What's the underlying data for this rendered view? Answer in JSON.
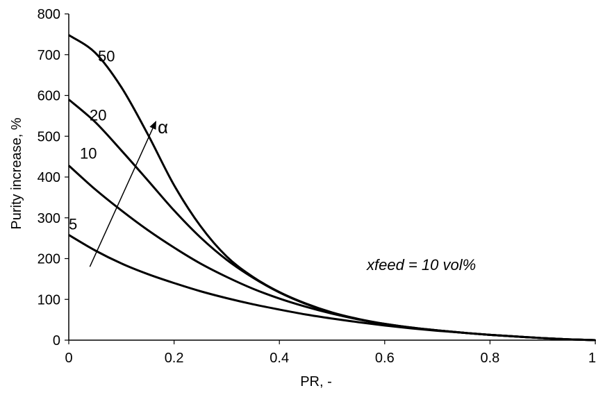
{
  "chart_data": {
    "type": "line",
    "title": "",
    "xlabel": "PR, -",
    "ylabel": "Purity increase, %",
    "xlim": [
      0,
      1
    ],
    "ylim": [
      0,
      800
    ],
    "x_ticks": [
      0,
      0.2,
      0.4,
      0.6,
      0.8,
      1
    ],
    "x_tick_labels": [
      "0",
      "0.2",
      "0.4",
      "0.6",
      "0.8",
      "1"
    ],
    "y_ticks": [
      0,
      100,
      200,
      300,
      400,
      500,
      600,
      700,
      800
    ],
    "y_tick_labels": [
      "0",
      "100",
      "200",
      "300",
      "400",
      "500",
      "600",
      "700",
      "800"
    ],
    "grid": false,
    "legend": "none",
    "line_color": "#000000",
    "x": [
      0,
      0.05,
      0.1,
      0.15,
      0.2,
      0.25,
      0.3,
      0.35,
      0.4,
      0.45,
      0.5,
      0.55,
      0.6,
      0.65,
      0.7,
      0.75,
      0.8,
      0.85,
      0.9,
      0.95,
      1.0
    ],
    "series": [
      {
        "label": "5",
        "values": [
          258,
          220,
          188,
          162,
          140,
          120,
          103,
          88,
          75,
          63,
          53,
          44,
          36,
          29,
          23,
          18,
          13,
          9,
          5,
          2,
          0
        ]
      },
      {
        "label": "10",
        "values": [
          428,
          370,
          318,
          270,
          227,
          188,
          155,
          126,
          102,
          82,
          65,
          51,
          40,
          31,
          24,
          18,
          13,
          9,
          5,
          2,
          0
        ]
      },
      {
        "label": "20",
        "values": [
          590,
          535,
          465,
          392,
          318,
          252,
          197,
          153,
          117,
          89,
          67,
          51,
          39,
          30,
          24,
          18,
          13,
          9,
          5,
          2,
          0
        ]
      },
      {
        "label": "50",
        "values": [
          748,
          705,
          620,
          505,
          380,
          280,
          205,
          155,
          118,
          90,
          68,
          52,
          40,
          31,
          24,
          18,
          13,
          9,
          5,
          2,
          0
        ]
      }
    ],
    "arrow_label": "α",
    "arrow": {
      "from": [
        0.04,
        180
      ],
      "to": [
        0.165,
        535
      ]
    },
    "annotation": "xfeed = 10 vol%"
  }
}
